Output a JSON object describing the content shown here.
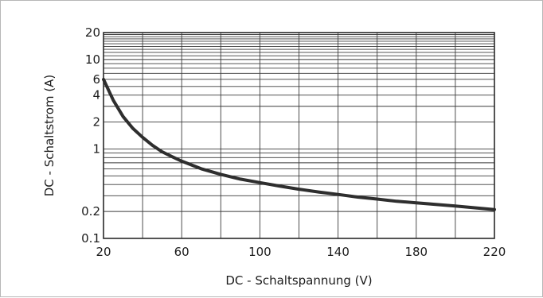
{
  "chart_data": {
    "type": "line",
    "title": "",
    "xlabel": "DC - Schaltspannung (V)",
    "ylabel": "DC - Schaltstrom (A)",
    "xlim": [
      20,
      220
    ],
    "ylim": [
      0.1,
      20
    ],
    "yscale": "log",
    "grid": true,
    "x_ticks": [
      20,
      60,
      100,
      140,
      180,
      220
    ],
    "x_tick_labels": [
      "20",
      "60",
      "100",
      "140",
      "180",
      "220"
    ],
    "y_ticks": [
      0.1,
      0.2,
      1,
      2,
      4,
      6,
      10,
      20
    ],
    "y_tick_labels": [
      "0.1",
      "0.2",
      "1",
      "2",
      "4",
      "6",
      "10",
      "20"
    ],
    "x_grid": [
      20,
      40,
      60,
      80,
      100,
      120,
      140,
      160,
      180,
      200,
      220
    ],
    "y_grid": [
      0.1,
      0.2,
      0.3,
      0.4,
      0.5,
      0.6,
      0.7,
      0.8,
      0.9,
      1,
      2,
      3,
      4,
      5,
      6,
      7,
      8,
      9,
      10,
      11,
      12,
      13,
      14,
      15,
      16,
      17,
      18,
      19,
      20
    ],
    "series": [
      {
        "x": [
          20,
          25,
          30,
          35,
          40,
          45,
          50,
          55,
          60,
          70,
          80,
          90,
          100,
          110,
          120,
          130,
          140,
          150,
          160,
          170,
          180,
          190,
          200,
          210,
          220
        ],
        "y": [
          6.0,
          3.5,
          2.3,
          1.7,
          1.35,
          1.1,
          0.93,
          0.82,
          0.73,
          0.6,
          0.52,
          0.46,
          0.42,
          0.385,
          0.355,
          0.33,
          0.31,
          0.29,
          0.275,
          0.26,
          0.25,
          0.24,
          0.23,
          0.22,
          0.21
        ]
      }
    ]
  }
}
